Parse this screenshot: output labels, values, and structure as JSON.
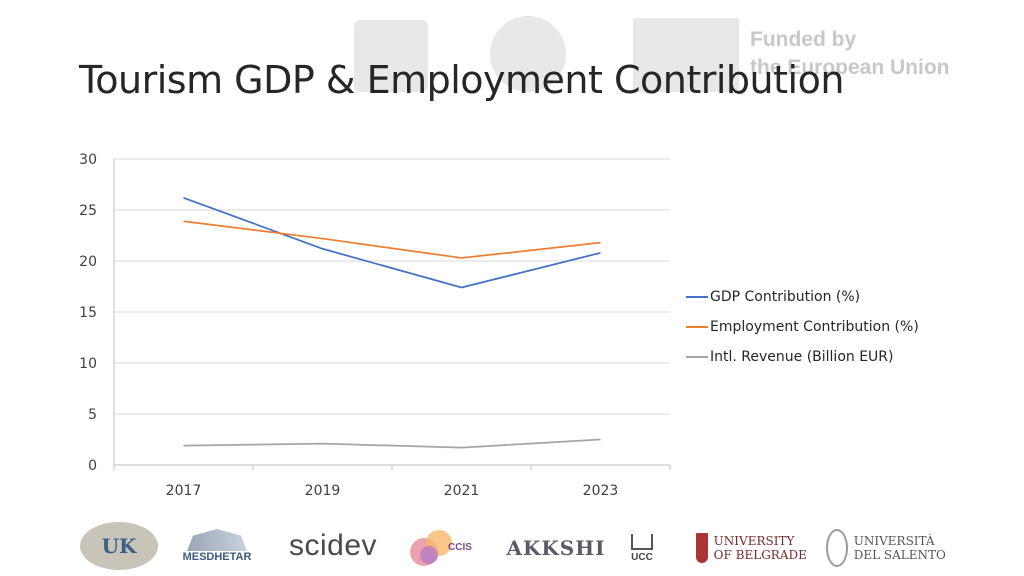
{
  "header": {
    "title": "Tourism GDP & Employment Contribution",
    "eu_line1": "Funded by",
    "eu_line2": "the European Union"
  },
  "chart_data": {
    "type": "line",
    "categories": [
      "2017",
      "2019",
      "2021",
      "2023"
    ],
    "series": [
      {
        "name": "GDP Contribution (%)",
        "values": [
          26.2,
          21.2,
          17.4,
          20.8
        ],
        "color": "#4472C4"
      },
      {
        "name": "Employment Contribution (%)",
        "values": [
          23.9,
          22.2,
          20.3,
          21.8
        ],
        "color": "#ED7D31"
      },
      {
        "name": "Intl. Revenue (Billion EUR)",
        "values": [
          1.9,
          2.1,
          1.7,
          2.5
        ],
        "color": "#A5A5A5"
      }
    ],
    "ylim": [
      0,
      30
    ],
    "yticks": [
      0,
      5,
      10,
      15,
      20,
      25,
      30
    ],
    "grid": true,
    "legend_position": "right",
    "title": "",
    "xlabel": "",
    "ylabel": ""
  },
  "footer": {
    "logos": [
      {
        "icon": "uk-university-logo",
        "text": "UK"
      },
      {
        "icon": "mesdhetar-logo",
        "text": "MESDHETAR"
      },
      {
        "icon": "scidev-logo",
        "text": "scidev"
      },
      {
        "icon": "ccis-logo",
        "text": "CCIS"
      },
      {
        "icon": "akkshi-logo",
        "text": "AKKSHI"
      },
      {
        "icon": "ucc-logo",
        "text": "UCC"
      },
      {
        "icon": "university-of-belgrade-logo",
        "text": "UNIVERSITY OF BELGRADE"
      },
      {
        "icon": "universita-del-salento-logo",
        "text": "UNIVERSITÀ DEL SALENTO"
      }
    ]
  }
}
